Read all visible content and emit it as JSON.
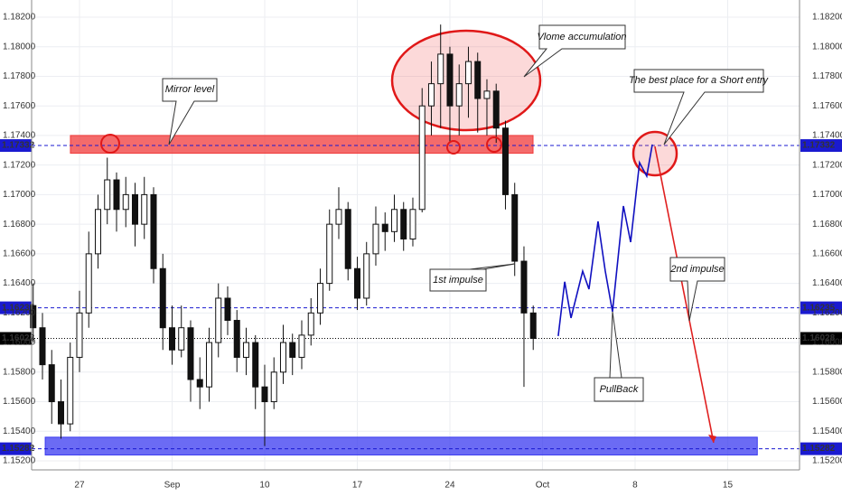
{
  "chart_data": {
    "type": "candlestick",
    "x": [
      -2.5,
      -2,
      -1.5,
      -1,
      -0.5,
      0,
      0.5,
      1,
      1.5,
      2,
      2.5,
      3,
      3.5,
      4,
      4.5,
      5,
      5.5,
      6,
      6.5,
      7,
      7.5,
      8,
      8.5,
      9,
      9.5,
      10,
      10.5,
      11,
      11.5,
      12,
      12.5,
      13,
      13.5,
      14,
      14.5,
      15,
      15.5,
      16,
      16.5,
      17,
      17.5,
      18,
      18.5,
      19,
      19.5,
      20,
      20.5,
      21,
      21.5,
      22,
      22.5,
      23,
      23.5,
      24,
      24.5
    ],
    "ohlc": [
      [
        1.1625,
        1.164,
        1.16,
        1.161
      ],
      [
        1.161,
        1.162,
        1.1575,
        1.1585
      ],
      [
        1.1585,
        1.1595,
        1.1545,
        1.156
      ],
      [
        1.156,
        1.1575,
        1.1535,
        1.1545
      ],
      [
        1.1545,
        1.16,
        1.154,
        1.159
      ],
      [
        1.159,
        1.1635,
        1.158,
        1.162
      ],
      [
        1.162,
        1.1675,
        1.161,
        1.166
      ],
      [
        1.166,
        1.17,
        1.165,
        1.169
      ],
      [
        1.169,
        1.1725,
        1.168,
        1.171
      ],
      [
        1.171,
        1.1715,
        1.1675,
        1.169
      ],
      [
        1.169,
        1.1712,
        1.1678,
        1.17
      ],
      [
        1.17,
        1.1708,
        1.1665,
        1.168
      ],
      [
        1.168,
        1.1712,
        1.167,
        1.17
      ],
      [
        1.17,
        1.1705,
        1.164,
        1.165
      ],
      [
        1.165,
        1.166,
        1.1595,
        1.161
      ],
      [
        1.161,
        1.1625,
        1.1585,
        1.1595
      ],
      [
        1.1595,
        1.1625,
        1.159,
        1.161
      ],
      [
        1.161,
        1.1615,
        1.156,
        1.1575
      ],
      [
        1.1575,
        1.159,
        1.1555,
        1.157
      ],
      [
        1.157,
        1.161,
        1.156,
        1.16
      ],
      [
        1.16,
        1.164,
        1.159,
        1.163
      ],
      [
        1.163,
        1.1638,
        1.1605,
        1.1615
      ],
      [
        1.1615,
        1.1622,
        1.158,
        1.159
      ],
      [
        1.159,
        1.161,
        1.1578,
        1.16
      ],
      [
        1.16,
        1.1605,
        1.1555,
        1.157
      ],
      [
        1.157,
        1.1585,
        1.153,
        1.156
      ],
      [
        1.156,
        1.159,
        1.1555,
        1.158
      ],
      [
        1.158,
        1.1612,
        1.1572,
        1.16
      ],
      [
        1.16,
        1.1606,
        1.1578,
        1.159
      ],
      [
        1.159,
        1.1615,
        1.1582,
        1.1605
      ],
      [
        1.1605,
        1.163,
        1.1598,
        1.162
      ],
      [
        1.162,
        1.165,
        1.1612,
        1.164
      ],
      [
        1.164,
        1.169,
        1.1635,
        1.168
      ],
      [
        1.168,
        1.1705,
        1.167,
        1.169
      ],
      [
        1.169,
        1.1695,
        1.1642,
        1.165
      ],
      [
        1.165,
        1.1658,
        1.1622,
        1.163
      ],
      [
        1.163,
        1.1668,
        1.1625,
        1.166
      ],
      [
        1.166,
        1.1692,
        1.1652,
        1.168
      ],
      [
        1.168,
        1.1688,
        1.1662,
        1.1675
      ],
      [
        1.1675,
        1.17,
        1.1668,
        1.169
      ],
      [
        1.169,
        1.1695,
        1.1662,
        1.167
      ],
      [
        1.167,
        1.1698,
        1.1665,
        1.169
      ],
      [
        1.169,
        1.1772,
        1.1688,
        1.176
      ],
      [
        1.176,
        1.179,
        1.174,
        1.1775
      ],
      [
        1.1775,
        1.1815,
        1.1745,
        1.1795
      ],
      [
        1.1795,
        1.18,
        1.1735,
        1.176
      ],
      [
        1.176,
        1.1788,
        1.174,
        1.1775
      ],
      [
        1.1775,
        1.18,
        1.1752,
        1.179
      ],
      [
        1.179,
        1.1796,
        1.1742,
        1.1765
      ],
      [
        1.1765,
        1.1778,
        1.174,
        1.177
      ],
      [
        1.177,
        1.1775,
        1.1735,
        1.1745
      ],
      [
        1.1745,
        1.175,
        1.169,
        1.17
      ],
      [
        1.17,
        1.1708,
        1.1645,
        1.1655
      ],
      [
        1.1655,
        1.1665,
        1.157,
        1.162
      ],
      [
        1.162,
        1.1625,
        1.1595,
        1.16028
      ]
    ],
    "projection": {
      "color": "#1010c0",
      "x": [
        25.85,
        26.2,
        26.54,
        27.17,
        27.51,
        28.0,
        28.39,
        28.78,
        29.37,
        29.76,
        30.24,
        30.63,
        30.93
      ],
      "values": [
        1.16044,
        1.16411,
        1.16166,
        1.16483,
        1.16361,
        1.16819,
        1.16483,
        1.16209,
        1.16923,
        1.16679,
        1.17217,
        1.17125,
        1.17339
      ]
    },
    "target": {
      "color": "#e02020",
      "x": [
        31.07,
        34.24
      ],
      "values": [
        1.17326,
        1.15323
      ]
    },
    "zones": [
      {
        "color": "#f03a3a",
        "x": [
          -0.49,
          24.49
        ],
        "values": [
          1.1728,
          1.174
        ]
      },
      {
        "color": "#3a3af0",
        "x": [
          -1.85,
          36.6
        ],
        "values": [
          1.1524,
          1.1536
        ]
      }
    ],
    "levels": [
      {
        "value": 1.17332,
        "color": "#1a1ad0"
      },
      {
        "value": 1.16235,
        "color": "#1a1ad0"
      },
      {
        "value": 1.16028,
        "color": "#000000"
      },
      {
        "value": 1.15282,
        "color": "#1a1ad0"
      }
    ],
    "notes": [
      "Mirror level",
      "Vlome accumulation",
      "The best place for a Short entry",
      "1st impulse",
      "2nd impulse",
      "PullBack"
    ],
    "xlim": [
      -2.585,
      38.88
    ],
    "xticks": [
      {
        "value": 0,
        "label": "27"
      },
      {
        "value": 5,
        "label": "Sep"
      },
      {
        "value": 10,
        "label": "10"
      },
      {
        "value": 15,
        "label": "17"
      },
      {
        "value": 20,
        "label": "24"
      },
      {
        "value": 25,
        "label": "Oct"
      },
      {
        "value": 30,
        "label": "8"
      },
      {
        "value": 35,
        "label": "15"
      }
    ],
    "ylim": [
      1.15139,
      1.18316
    ],
    "yticks": [
      {
        "value": 1.152,
        "label": "1.15200"
      },
      {
        "value": 1.154,
        "label": "1.15400"
      },
      {
        "value": 1.156,
        "label": "1.15600"
      },
      {
        "value": 1.158,
        "label": "1.15800"
      },
      {
        "value": 1.16,
        "label": "1.16000"
      },
      {
        "value": 1.162,
        "label": "1.16200"
      },
      {
        "value": 1.164,
        "label": "1.16400"
      },
      {
        "value": 1.166,
        "label": "1.16600"
      },
      {
        "value": 1.168,
        "label": "1.16800"
      },
      {
        "value": 1.17,
        "label": "1.17000"
      },
      {
        "value": 1.172,
        "label": "1.17200"
      },
      {
        "value": 1.174,
        "label": "1.17400"
      },
      {
        "value": 1.176,
        "label": "1.17600"
      },
      {
        "value": 1.178,
        "label": "1.17800"
      },
      {
        "value": 1.18,
        "label": "1.18000"
      },
      {
        "value": 1.182,
        "label": "1.18200"
      }
    ],
    "grid": true
  }
}
